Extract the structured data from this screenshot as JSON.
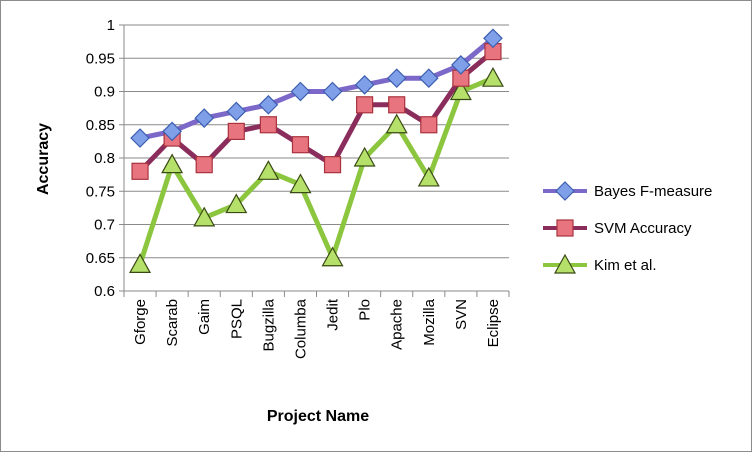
{
  "chart_data": {
    "type": "line",
    "xlabel": "Project Name",
    "ylabel": "Accuracy",
    "ylim": [
      0.6,
      1.0
    ],
    "yticks": [
      "0.6",
      "0.65",
      "0.7",
      "0.75",
      "0.8",
      "0.85",
      "0.9",
      "0.95",
      "1"
    ],
    "categories": [
      "Gforge",
      "Scarab",
      "Gaim",
      "PSQL",
      "Bugzilla",
      "Columba",
      "Jedit",
      "Plo",
      "Apache",
      "Mozilla",
      "SVN",
      "Eclipse"
    ],
    "grid": "horizontal",
    "legend_position": "right",
    "series": [
      {
        "name": "Bayes F-measure",
        "marker": "diamond",
        "line_color": "#7b68c8",
        "marker_fill": "#7f9fe8",
        "marker_stroke": "#3d5eb0",
        "values": [
          0.83,
          0.84,
          0.86,
          0.87,
          0.88,
          0.9,
          0.9,
          0.91,
          0.92,
          0.92,
          0.94,
          0.98
        ]
      },
      {
        "name": "SVM Accuracy",
        "marker": "square",
        "line_color": "#8b2d5c",
        "marker_fill": "#e8747f",
        "marker_stroke": "#a8323e",
        "values": [
          0.78,
          0.83,
          0.79,
          0.84,
          0.85,
          0.82,
          0.79,
          0.88,
          0.88,
          0.85,
          0.92,
          0.96
        ]
      },
      {
        "name": "Kim et al.",
        "marker": "triangle",
        "line_color": "#8cc63f",
        "marker_fill": "#b5e06a",
        "marker_stroke": "#3a4a14",
        "values": [
          0.64,
          0.79,
          0.71,
          0.73,
          0.78,
          0.76,
          0.65,
          0.8,
          0.85,
          0.77,
          0.9,
          0.92
        ]
      }
    ]
  }
}
